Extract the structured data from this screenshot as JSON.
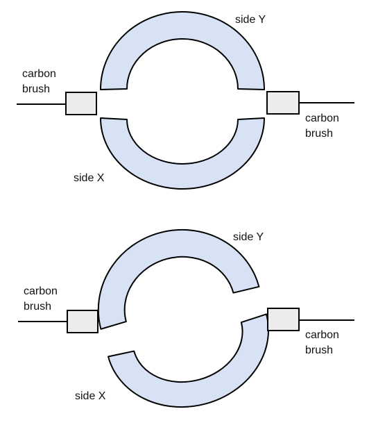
{
  "colors": {
    "ring_fill": "#d7e3f4",
    "brush_fill": "#ececec",
    "stroke": "#000000"
  },
  "panels": [
    {
      "segments": {
        "top_label": "side Y",
        "bottom_label": "side X"
      },
      "left_brush": {
        "line1": "carbon",
        "line2": "brush"
      },
      "right_brush": {
        "line1": "carbon",
        "line2": "brush"
      }
    },
    {
      "segments": {
        "top_label": "side Y",
        "bottom_label": "side X"
      },
      "left_brush": {
        "line1": "carbon",
        "line2": "brush"
      },
      "right_brush": {
        "line1": "carbon",
        "line2": "brush"
      }
    }
  ]
}
